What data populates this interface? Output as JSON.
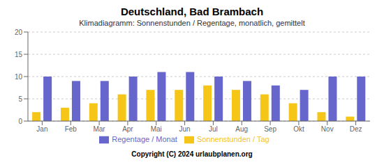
{
  "chart_data": {
    "type": "bar",
    "title": "Deutschland, Bad Brambach",
    "subtitle": "Klimadiagramm: Sonnenstunden / Regentage, monatlich, gemittelt",
    "annotation": "Copyright (C) 2024 urlaubplanen.org",
    "categories": [
      "Jan",
      "Feb",
      "Mar",
      "Apr",
      "Mai",
      "Jun",
      "Jul",
      "Aug",
      "Sep",
      "Okt",
      "Nov",
      "Dez"
    ],
    "series": [
      {
        "name": "Sonnenstunden / Tag",
        "color": "#F5C518",
        "values": [
          2,
          3,
          4,
          6,
          7,
          7,
          8,
          7,
          6,
          4,
          2,
          1
        ]
      },
      {
        "name": "Regentage / Monat",
        "color": "#6666CC",
        "values": [
          10,
          9,
          9,
          10,
          11,
          11,
          10,
          9,
          8,
          7,
          10,
          10
        ]
      }
    ],
    "ylim": [
      0,
      20
    ],
    "yticks": [
      0,
      5,
      10,
      15,
      20
    ],
    "grid": true,
    "legend": "bottom"
  }
}
